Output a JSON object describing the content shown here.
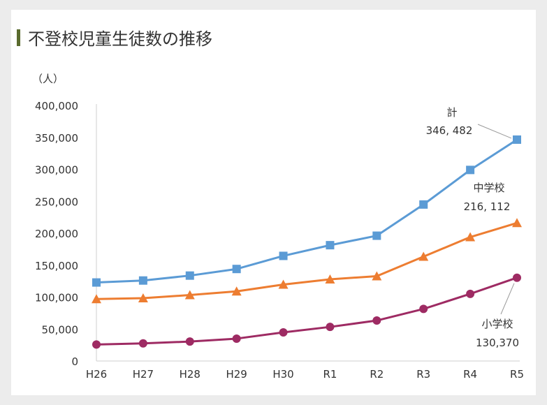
{
  "title": "不登校児童生徒数の推移",
  "chart_data": {
    "type": "line",
    "title": "",
    "ylabel": "（人）",
    "xlabel": "",
    "ylim": [
      0,
      400000
    ],
    "yticks": [
      "400,000",
      "350,000",
      "300,000",
      "250,000",
      "200,000",
      "150,000",
      "100,000",
      "50,000",
      "0"
    ],
    "ytick_values": [
      400000,
      350000,
      300000,
      250000,
      200000,
      150000,
      100000,
      50000,
      0
    ],
    "categories": [
      "H26",
      "H27",
      "H28",
      "H29",
      "H30",
      "R1",
      "R2",
      "R3",
      "R4",
      "R5"
    ],
    "grid": false,
    "legend": "none",
    "series": [
      {
        "name": "計",
        "color": "#5b9bd5",
        "marker": "square",
        "values": [
          122902,
          125991,
          133683,
          144031,
          164528,
          181272,
          196127,
          244940,
          299048,
          346482
        ]
      },
      {
        "name": "中学校",
        "color": "#ed7d31",
        "marker": "triangle",
        "values": [
          97033,
          98408,
          103235,
          108999,
          119687,
          127922,
          132777,
          163442,
          193936,
          216112
        ]
      },
      {
        "name": "小学校",
        "color": "#9e2b63",
        "marker": "circle",
        "values": [
          25864,
          27583,
          30448,
          35032,
          44841,
          53350,
          63350,
          81498,
          105112,
          130370
        ]
      }
    ],
    "annotations": [
      {
        "series": "計",
        "label": "計",
        "value_label": "346, 482"
      },
      {
        "series": "中学校",
        "label": "中学校",
        "value_label": "216, 112"
      },
      {
        "series": "小学校",
        "label": "小学校",
        "value_label": "130,370"
      }
    ]
  }
}
